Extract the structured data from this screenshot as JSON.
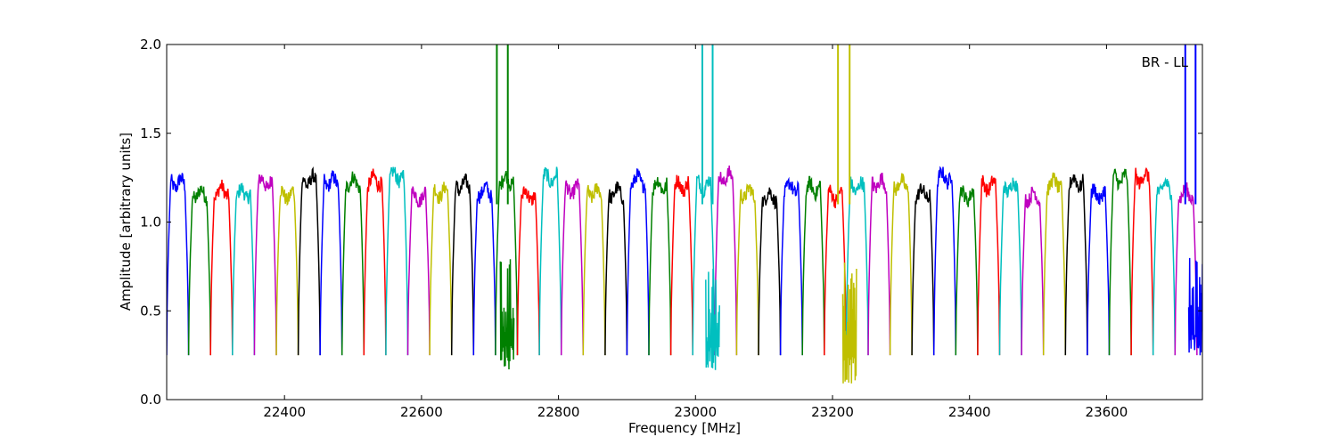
{
  "chart_data": {
    "type": "line",
    "title": "",
    "xlabel": "Frequency [MHz]",
    "ylabel": "Amplitude [arbitrary units]",
    "xlim": [
      22228,
      23740
    ],
    "ylim": [
      0.0,
      2.0
    ],
    "x_ticks": [
      22400,
      22600,
      22800,
      23000,
      23200,
      23400,
      23600
    ],
    "x_tick_labels": [
      "22400",
      "22600",
      "22800",
      "23000",
      "23200",
      "23400",
      "23600"
    ],
    "y_ticks": [
      0.0,
      0.5,
      1.0,
      1.5,
      2.0
    ],
    "y_tick_labels": [
      "0.0",
      "0.5",
      "1.0",
      "1.5",
      "2.0"
    ],
    "grid": false,
    "annotation": "BR - LL",
    "annotation_position": "top-right",
    "channel_start_mhz": 22228,
    "channel_width_mhz": 32,
    "channel_count": 47,
    "channel_level": 1.2,
    "channel_min": 0.25,
    "color_cycle": [
      "#0000ff",
      "#008000",
      "#ff0000",
      "#00bfbf",
      "#bf00bf",
      "#bfbf00",
      "#000000"
    ],
    "peaks": [
      {
        "x": 22710,
        "y": 2.0,
        "color": "#008000"
      },
      {
        "x": 22726,
        "y": 2.0,
        "color": "#008000"
      },
      {
        "x": 23010,
        "y": 2.0,
        "color": "#00bfbf"
      },
      {
        "x": 23025,
        "y": 2.0,
        "color": "#00bfbf"
      },
      {
        "x": 23208,
        "y": 2.0,
        "color": "#bfbf00"
      },
      {
        "x": 23225,
        "y": 2.0,
        "color": "#bfbf00"
      },
      {
        "x": 23715,
        "y": 2.0,
        "color": "#0000ff"
      },
      {
        "x": 23730,
        "y": 2.0,
        "color": "#0000ff"
      }
    ],
    "dips": [
      {
        "x": 22725,
        "y": 0.17,
        "color": "#008000"
      },
      {
        "x": 23025,
        "y": 0.16,
        "color": "#00bfbf"
      },
      {
        "x": 23225,
        "y": 0.09,
        "color": "#bfbf00"
      },
      {
        "x": 23730,
        "y": 0.24,
        "color": "#0000ff"
      }
    ]
  }
}
